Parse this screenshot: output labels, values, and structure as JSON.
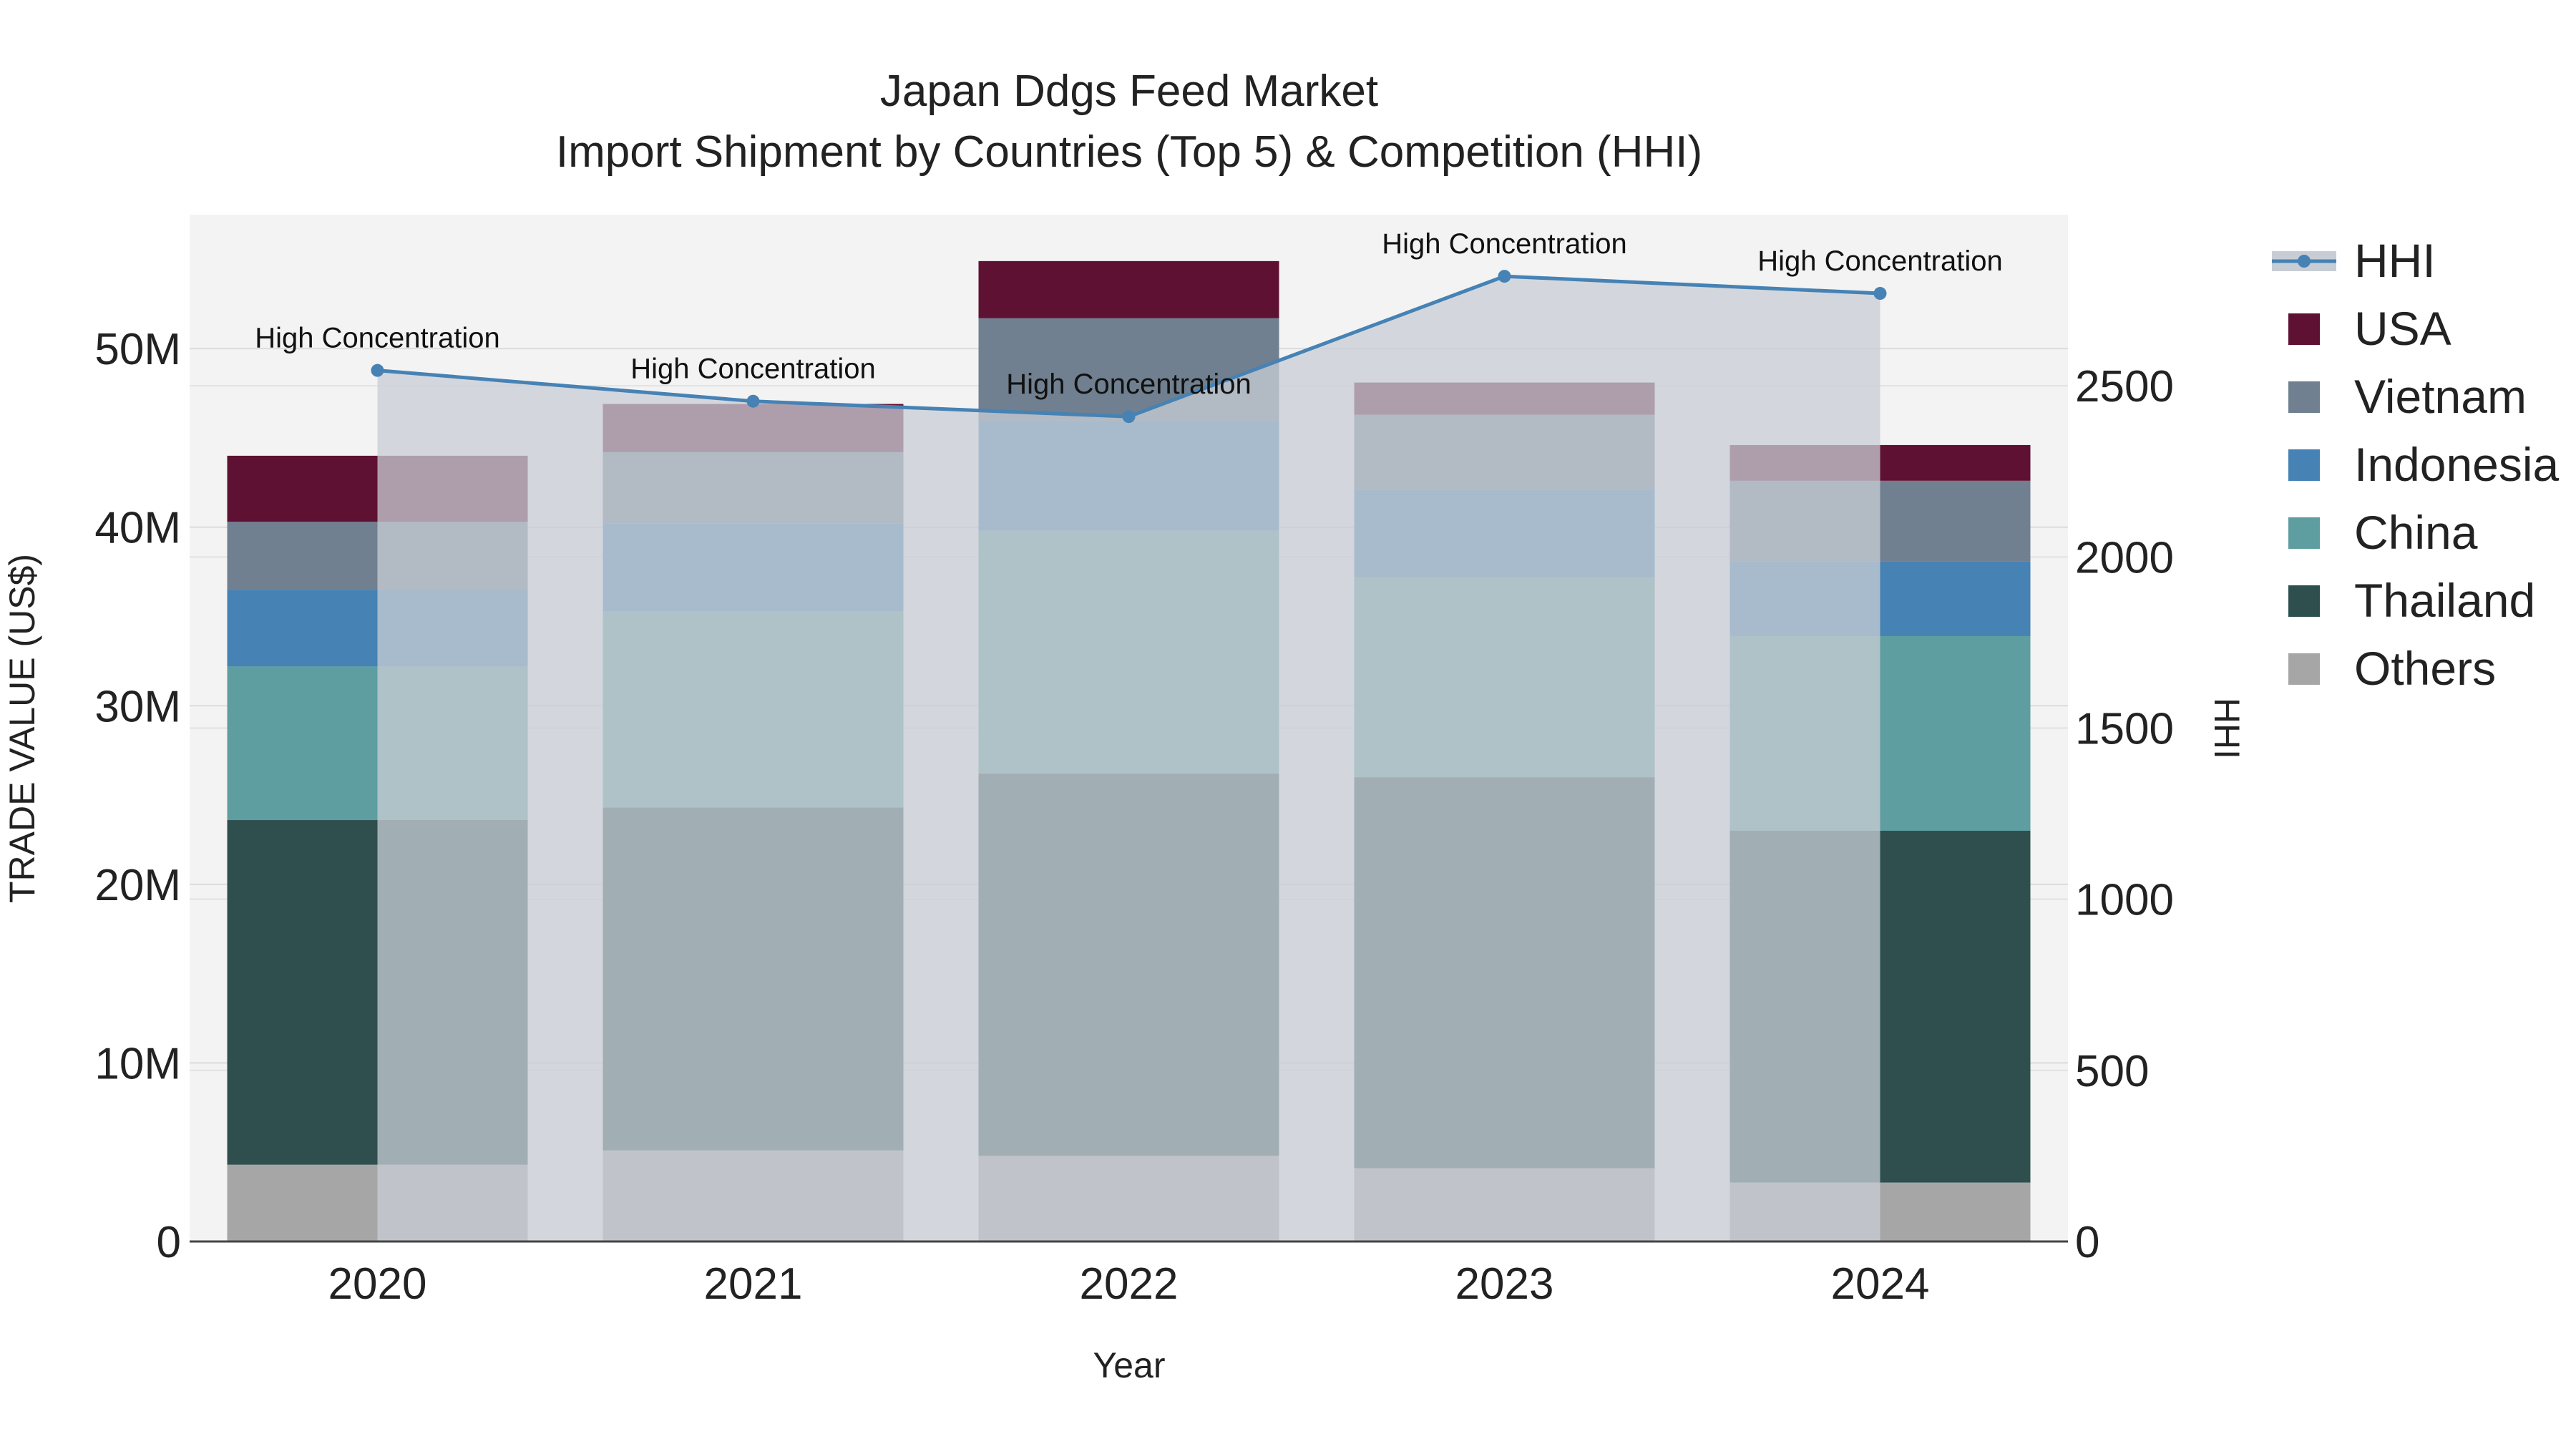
{
  "chart_data": {
    "type": "bar",
    "title": "Japan Ddgs Feed Market",
    "subtitle": "Import Shipment by Countries (Top 5) & Competition (HHI)",
    "xlabel": "Year",
    "ylabel": "TRADE VALUE (US$)",
    "y2label": "HHI",
    "categories": [
      "2020",
      "2021",
      "2022",
      "2023",
      "2024"
    ],
    "ylim": [
      0,
      57500000
    ],
    "y2lim": [
      0,
      3000
    ],
    "yticks": [
      {
        "value": 0,
        "label": "0"
      },
      {
        "value": 10000000,
        "label": "10M"
      },
      {
        "value": 20000000,
        "label": "20M"
      },
      {
        "value": 30000000,
        "label": "30M"
      },
      {
        "value": 40000000,
        "label": "40M"
      },
      {
        "value": 50000000,
        "label": "50M"
      }
    ],
    "y2ticks": [
      {
        "value": 0,
        "label": "0"
      },
      {
        "value": 500,
        "label": "500"
      },
      {
        "value": 1000,
        "label": "1000"
      },
      {
        "value": 1500,
        "label": "1500"
      },
      {
        "value": 2000,
        "label": "2000"
      },
      {
        "value": 2500,
        "label": "2500"
      }
    ],
    "series": [
      {
        "name": "Others",
        "color": "#a6a6a6",
        "values": [
          4300000,
          5100000,
          4800000,
          4100000,
          3300000
        ]
      },
      {
        "name": "Thailand",
        "color": "#2f4f4f",
        "values": [
          19300000,
          19200000,
          21400000,
          21900000,
          19700000
        ]
      },
      {
        "name": "China",
        "color": "#5f9ea0",
        "values": [
          8600000,
          11000000,
          13600000,
          11200000,
          10900000
        ]
      },
      {
        "name": "Indonesia",
        "color": "#4682b4",
        "values": [
          4300000,
          4900000,
          6100000,
          4900000,
          4200000
        ]
      },
      {
        "name": "Vietnam",
        "color": "#708090",
        "values": [
          3800000,
          4000000,
          5800000,
          4200000,
          4500000
        ]
      },
      {
        "name": "USA",
        "color": "#5f1133",
        "values": [
          3700000,
          2700000,
          3200000,
          1800000,
          2000000
        ]
      }
    ],
    "hhi": {
      "name": "HHI",
      "color": "#4682b4",
      "area_color": "#c8cdd5",
      "values": [
        2545,
        2455,
        2410,
        2820,
        2770
      ],
      "annotations": [
        "High Concentration",
        "High Concentration",
        "High Concentration",
        "High Concentration",
        "High Concentration"
      ]
    },
    "legend": {
      "position": "right",
      "items": [
        "HHI",
        "USA",
        "Vietnam",
        "Indonesia",
        "China",
        "Thailand",
        "Others"
      ]
    },
    "background": "#f3f3f3",
    "grid": true
  }
}
